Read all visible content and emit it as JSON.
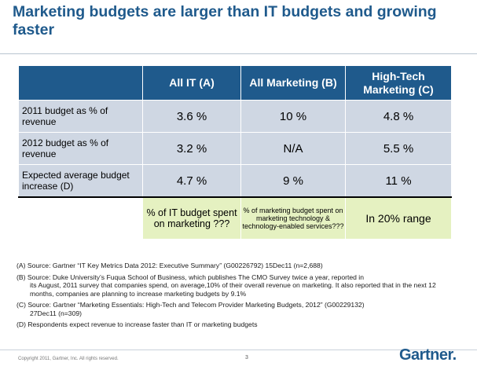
{
  "title": "Marketing budgets are larger than IT budgets and growing faster",
  "table": {
    "headers": [
      "All IT (A)",
      "All Marketing (B)",
      "High-Tech Marketing (C)"
    ],
    "rows": [
      {
        "label": "2011 budget as % of revenue",
        "values": [
          "3.6 %",
          "10 %",
          "4.8 %"
        ]
      },
      {
        "label": "2012 budget as % of revenue",
        "values": [
          "3.2 %",
          "N/A",
          "5.5 %"
        ]
      },
      {
        "label": "Expected average budget increase (D)",
        "values": [
          "4.7 %",
          "9 %",
          "11 %"
        ]
      }
    ],
    "footer_cells": [
      "% of IT budget spent on marketing ???",
      "% of marketing budget spent on marketing technology & technology-enabled services???",
      "In 20% range"
    ],
    "colors": {
      "header": "#1f5a8c",
      "row": "#cfd7e3",
      "highlight": "#e5f1c1"
    }
  },
  "notes": {
    "a": "(A) Source:  Gartner  “IT Key Metrics Data 2012:  Executive Summary”  (G00226792) 15Dec11  (n=2,688)",
    "b1": "(B) Source:  Duke University’s Fuqua School of Business, which publishes The CMO Survey twice a year, reported in",
    "b2": "its August, 2011 survey that companies spend, on average,10% of their overall revenue on marketing. It also reported that in the next 12 months, companies are planning to increase marketing budgets by 9.1%",
    "c1": "(C) Source: Gartner  “Marketing Essentials:  High-Tech and Telecom Provider Marketing Budgets, 2012”  (G00229132)",
    "c2": "27Dec11 (n=309)",
    "d": "(D) Respondents expect revenue to increase faster than IT or marketing budgets"
  },
  "footer": {
    "copyright": "Copyright 2011, Gartner, Inc.   All rights reserved.",
    "page": "3",
    "logo": "Gartner."
  }
}
